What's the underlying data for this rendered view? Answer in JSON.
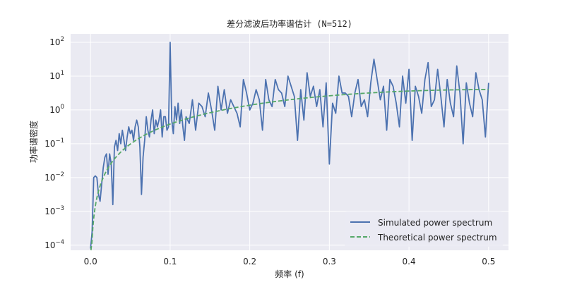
{
  "chart_data": {
    "type": "line",
    "title": "差分滤波后功率谱估计 (N=512)",
    "xlabel": "频率 (f)",
    "ylabel": "功率谱密度",
    "xlim": [
      -0.025,
      0.525
    ],
    "ylim_log10": [
      -4.15,
      2.25
    ],
    "yscale": "log",
    "grid": true,
    "legend_position": "lower-right",
    "xticks": [
      {
        "value": 0.0,
        "label": "0.0"
      },
      {
        "value": 0.1,
        "label": "0.1"
      },
      {
        "value": 0.2,
        "label": "0.2"
      },
      {
        "value": 0.3,
        "label": "0.3"
      },
      {
        "value": 0.4,
        "label": "0.4"
      },
      {
        "value": 0.5,
        "label": "0.5"
      }
    ],
    "yticks": [
      {
        "value": -4,
        "base": "10",
        "exp": "−4"
      },
      {
        "value": -3,
        "base": "10",
        "exp": "−3"
      },
      {
        "value": -2,
        "base": "10",
        "exp": "−2"
      },
      {
        "value": -1,
        "base": "10",
        "exp": "−1"
      },
      {
        "value": 0,
        "base": "10",
        "exp": "0"
      },
      {
        "value": 1,
        "base": "10",
        "exp": "1"
      },
      {
        "value": 2,
        "base": "10",
        "exp": "2"
      }
    ],
    "series": [
      {
        "name": "Simulated power spectrum",
        "color": "#4c72b0",
        "style": "solid",
        "x": [
          0.0,
          0.002,
          0.004,
          0.006,
          0.008,
          0.01,
          0.012,
          0.014,
          0.016,
          0.018,
          0.02,
          0.022,
          0.024,
          0.026,
          0.028,
          0.03,
          0.032,
          0.034,
          0.036,
          0.038,
          0.04,
          0.042,
          0.044,
          0.046,
          0.048,
          0.05,
          0.052,
          0.054,
          0.056,
          0.058,
          0.06,
          0.062,
          0.064,
          0.066,
          0.068,
          0.07,
          0.072,
          0.074,
          0.076,
          0.078,
          0.08,
          0.082,
          0.084,
          0.086,
          0.088,
          0.09,
          0.092,
          0.094,
          0.096,
          0.098,
          0.1,
          0.102,
          0.104,
          0.106,
          0.108,
          0.11,
          0.112,
          0.114,
          0.116,
          0.118,
          0.12,
          0.124,
          0.128,
          0.132,
          0.136,
          0.14,
          0.144,
          0.148,
          0.152,
          0.156,
          0.16,
          0.164,
          0.168,
          0.172,
          0.176,
          0.18,
          0.184,
          0.188,
          0.192,
          0.196,
          0.2,
          0.204,
          0.208,
          0.212,
          0.216,
          0.22,
          0.224,
          0.228,
          0.232,
          0.236,
          0.24,
          0.244,
          0.248,
          0.252,
          0.256,
          0.26,
          0.264,
          0.268,
          0.272,
          0.276,
          0.28,
          0.284,
          0.288,
          0.292,
          0.296,
          0.3,
          0.304,
          0.308,
          0.312,
          0.316,
          0.32,
          0.324,
          0.328,
          0.332,
          0.336,
          0.34,
          0.344,
          0.348,
          0.352,
          0.356,
          0.36,
          0.364,
          0.368,
          0.372,
          0.376,
          0.38,
          0.384,
          0.388,
          0.392,
          0.396,
          0.4,
          0.404,
          0.408,
          0.412,
          0.416,
          0.42,
          0.424,
          0.428,
          0.432,
          0.436,
          0.44,
          0.444,
          0.448,
          0.452,
          0.456,
          0.46,
          0.464,
          0.468,
          0.472,
          0.476,
          0.48,
          0.484,
          0.488,
          0.492,
          0.496,
          0.5
        ],
        "y_log10": [
          -4.1,
          -3.6,
          -2.0,
          -1.95,
          -2.0,
          -2.5,
          -2.7,
          -2.2,
          -1.7,
          -1.4,
          -1.3,
          -1.9,
          -1.3,
          -1.6,
          -2.8,
          -1.1,
          -0.9,
          -1.2,
          -0.7,
          -1.0,
          -0.6,
          -0.9,
          -1.2,
          -0.8,
          -0.5,
          -0.7,
          -0.6,
          -0.9,
          -0.5,
          -0.3,
          -0.5,
          -1.1,
          -2.5,
          -1.4,
          -0.9,
          -0.2,
          -0.6,
          -0.8,
          -0.3,
          0.0,
          -0.7,
          -0.3,
          -0.5,
          -0.3,
          0.0,
          -0.8,
          -0.2,
          -0.2,
          -0.6,
          -0.5,
          2.0,
          -0.3,
          -0.7,
          0.1,
          -0.3,
          0.2,
          -0.4,
          0.0,
          -0.5,
          -0.9,
          -0.2,
          -0.4,
          0.3,
          -0.6,
          0.2,
          0.1,
          -0.2,
          0.5,
          0.0,
          -0.6,
          0.7,
          0.0,
          0.6,
          -0.1,
          0.3,
          0.1,
          -0.1,
          -0.5,
          0.9,
          0.5,
          0.0,
          0.2,
          0.6,
          0.3,
          -0.6,
          0.9,
          0.3,
          0.1,
          0.9,
          0.6,
          0.5,
          0.1,
          1.0,
          0.7,
          0.4,
          -0.9,
          0.6,
          -0.3,
          1.1,
          0.4,
          0.7,
          0.1,
          0.6,
          -0.5,
          0.8,
          -1.6,
          0.2,
          -0.1,
          1.0,
          0.5,
          0.5,
          0.4,
          -0.2,
          0.5,
          0.9,
          0.1,
          0.3,
          -0.2,
          0.8,
          1.5,
          0.9,
          0.3,
          0.7,
          -0.6,
          0.9,
          0.7,
          0.2,
          -0.5,
          1.0,
          0.2,
          1.2,
          -0.9,
          0.7,
          0.4,
          -0.1,
          0.9,
          1.4,
          0.1,
          0.3,
          1.2,
          0.4,
          -0.5,
          0.9,
          0.2,
          -0.2,
          1.3,
          0.5,
          -1.0,
          0.8,
          0.2,
          -0.2,
          1.1,
          0.6,
          0.3,
          -0.8,
          0.8
        ]
      },
      {
        "name": "Theoretical power spectrum",
        "color": "#55a868",
        "style": "dashed",
        "theoretical_formula": "4*sin(pi*f)^2"
      }
    ]
  }
}
